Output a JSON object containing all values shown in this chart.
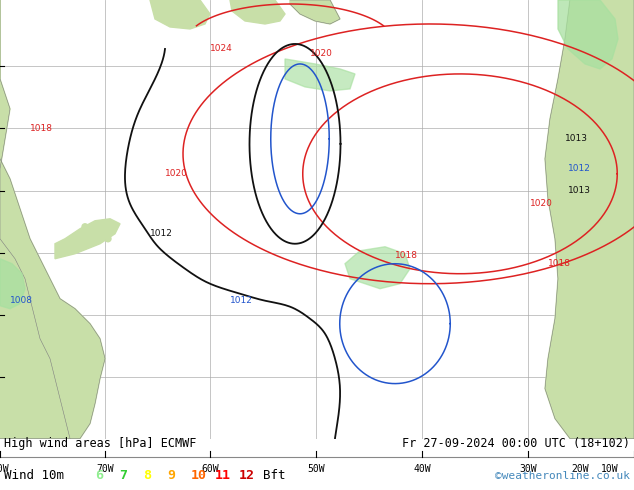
{
  "title_left": "High wind areas [hPa] ECMWF",
  "title_right": "Fr 27-09-2024 00:00 UTC (18+102)",
  "subtitle_left": "Wind 10m",
  "legend_values": [
    "6",
    "7",
    "8",
    "9",
    "10",
    "11",
    "12"
  ],
  "legend_colors": [
    "#90ee90",
    "#32cd32",
    "#ffff00",
    "#ffa500",
    "#ff6600",
    "#ff0000",
    "#cc0000"
  ],
  "legend_unit": "Bft",
  "copyright": "©weatheronline.co.uk",
  "ocean_color": "#d8e8f0",
  "land_color": "#c8dfa8",
  "grid_color": "#aaaaaa",
  "fig_width": 6.34,
  "fig_height": 4.9,
  "dpi": 100,
  "bottom_bar_color": "#d8d8d8",
  "isobar_red": "#dd2222",
  "isobar_blue": "#2255cc",
  "isobar_black": "#111111"
}
